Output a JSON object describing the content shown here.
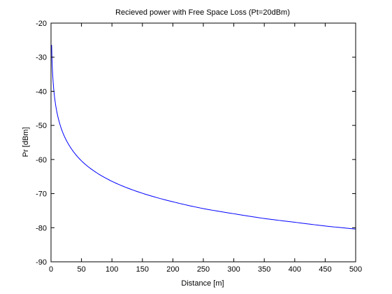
{
  "chart_data": {
    "type": "line",
    "title": "Recieved power with Free Space Loss (Pt=20dBm)",
    "xlabel": "Distance [m]",
    "ylabel": "Pr [dBm]",
    "xlim": [
      0,
      500
    ],
    "ylim": [
      -90,
      -20
    ],
    "xticks": [
      "0",
      "50",
      "100",
      "150",
      "200",
      "250",
      "300",
      "350",
      "400",
      "450",
      "500"
    ],
    "yticks": [
      "-20",
      "-30",
      "-40",
      "-50",
      "-60",
      "-70",
      "-80",
      "-90"
    ],
    "grid": false,
    "legend": "none",
    "line_color": "#0000ff",
    "series": [
      {
        "x": [
          1,
          2,
          3,
          5,
          10,
          20,
          30,
          50,
          75,
          100,
          150,
          200,
          250,
          300,
          350,
          400,
          450,
          500
        ],
        "y": [
          -26.4,
          -32.4,
          -35.9,
          -40.4,
          -46.4,
          -52.4,
          -55.9,
          -60.4,
          -63.9,
          -66.4,
          -69.9,
          -72.4,
          -74.4,
          -75.9,
          -77.3,
          -78.4,
          -79.5,
          -80.4
        ]
      }
    ]
  }
}
